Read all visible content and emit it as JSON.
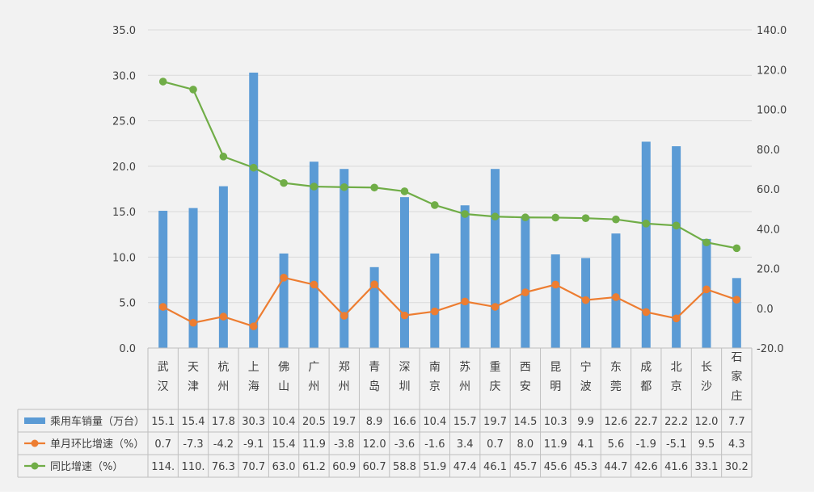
{
  "chart_data": {
    "type": "bar",
    "categories": [
      [
        "武",
        "汉"
      ],
      [
        "天",
        "津"
      ],
      [
        "杭",
        "州"
      ],
      [
        "上",
        "海"
      ],
      [
        "佛",
        "山"
      ],
      [
        "广",
        "州"
      ],
      [
        "郑",
        "州"
      ],
      [
        "青",
        "岛"
      ],
      [
        "深",
        "圳"
      ],
      [
        "南",
        "京"
      ],
      [
        "苏",
        "州"
      ],
      [
        "重",
        "庆"
      ],
      [
        "西",
        "安"
      ],
      [
        "昆",
        "明"
      ],
      [
        "宁",
        "波"
      ],
      [
        "东",
        "莞"
      ],
      [
        "成",
        "都"
      ],
      [
        "北",
        "京"
      ],
      [
        "长",
        "沙"
      ],
      [
        "石",
        "家",
        "庄"
      ]
    ],
    "y_left": {
      "min": 0,
      "max": 35,
      "step": 5,
      "ticks": [
        "0.0",
        "5.0",
        "10.0",
        "15.0",
        "20.0",
        "25.0",
        "30.0",
        "35.0"
      ]
    },
    "y_right": {
      "min": -20,
      "max": 140,
      "step": 20,
      "ticks": [
        "-20.0",
        "0.0",
        "20.0",
        "40.0",
        "60.0",
        "80.0",
        "100.0",
        "120.0",
        "140.0"
      ]
    },
    "series": [
      {
        "name": "乘用车销量（万台）",
        "type": "bar",
        "axis": "left",
        "color": "#5b9bd5",
        "values": [
          15.1,
          15.4,
          17.8,
          30.3,
          10.4,
          20.5,
          19.7,
          8.9,
          16.6,
          10.4,
          15.7,
          19.7,
          14.5,
          10.3,
          9.9,
          12.6,
          22.7,
          22.2,
          12.0,
          7.7
        ],
        "labels": [
          "15.1",
          "15.4",
          "17.8",
          "30.3",
          "10.4",
          "20.5",
          "19.7",
          "8.9",
          "16.6",
          "10.4",
          "15.7",
          "19.7",
          "14.5",
          "10.3",
          "9.9",
          "12.6",
          "22.7",
          "22.2",
          "12.0",
          "7.7"
        ]
      },
      {
        "name": "单月环比增速（%）",
        "type": "line",
        "axis": "right",
        "color": "#ed7d31",
        "values": [
          0.7,
          -7.3,
          -4.2,
          -9.1,
          15.4,
          11.9,
          -3.8,
          12.0,
          -3.6,
          -1.6,
          3.4,
          0.7,
          8.0,
          11.9,
          4.1,
          5.6,
          -1.9,
          -5.1,
          9.5,
          4.3
        ],
        "labels": [
          "0.7",
          "-7.3",
          "-4.2",
          "-9.1",
          "15.4",
          "11.9",
          "-3.8",
          "12.0",
          "-3.6",
          "-1.6",
          "3.4",
          "0.7",
          "8.0",
          "11.9",
          "4.1",
          "5.6",
          "-1.9",
          "-5.1",
          "9.5",
          "4.3"
        ]
      },
      {
        "name": "同比增速（%）",
        "type": "line",
        "axis": "right",
        "color": "#70ad47",
        "values": [
          114.0,
          110.0,
          76.3,
          70.7,
          63.0,
          61.2,
          60.9,
          60.7,
          58.8,
          51.9,
          47.4,
          46.1,
          45.7,
          45.6,
          45.3,
          44.7,
          42.6,
          41.6,
          33.1,
          30.2
        ],
        "labels": [
          "114.",
          "110.",
          "76.3",
          "70.7",
          "63.0",
          "61.2",
          "60.9",
          "60.7",
          "58.8",
          "51.9",
          "47.4",
          "46.1",
          "45.7",
          "45.6",
          "45.3",
          "44.7",
          "42.6",
          "41.6",
          "33.1",
          "30.2"
        ]
      }
    ],
    "grid": true,
    "legend": "bottom-table"
  }
}
